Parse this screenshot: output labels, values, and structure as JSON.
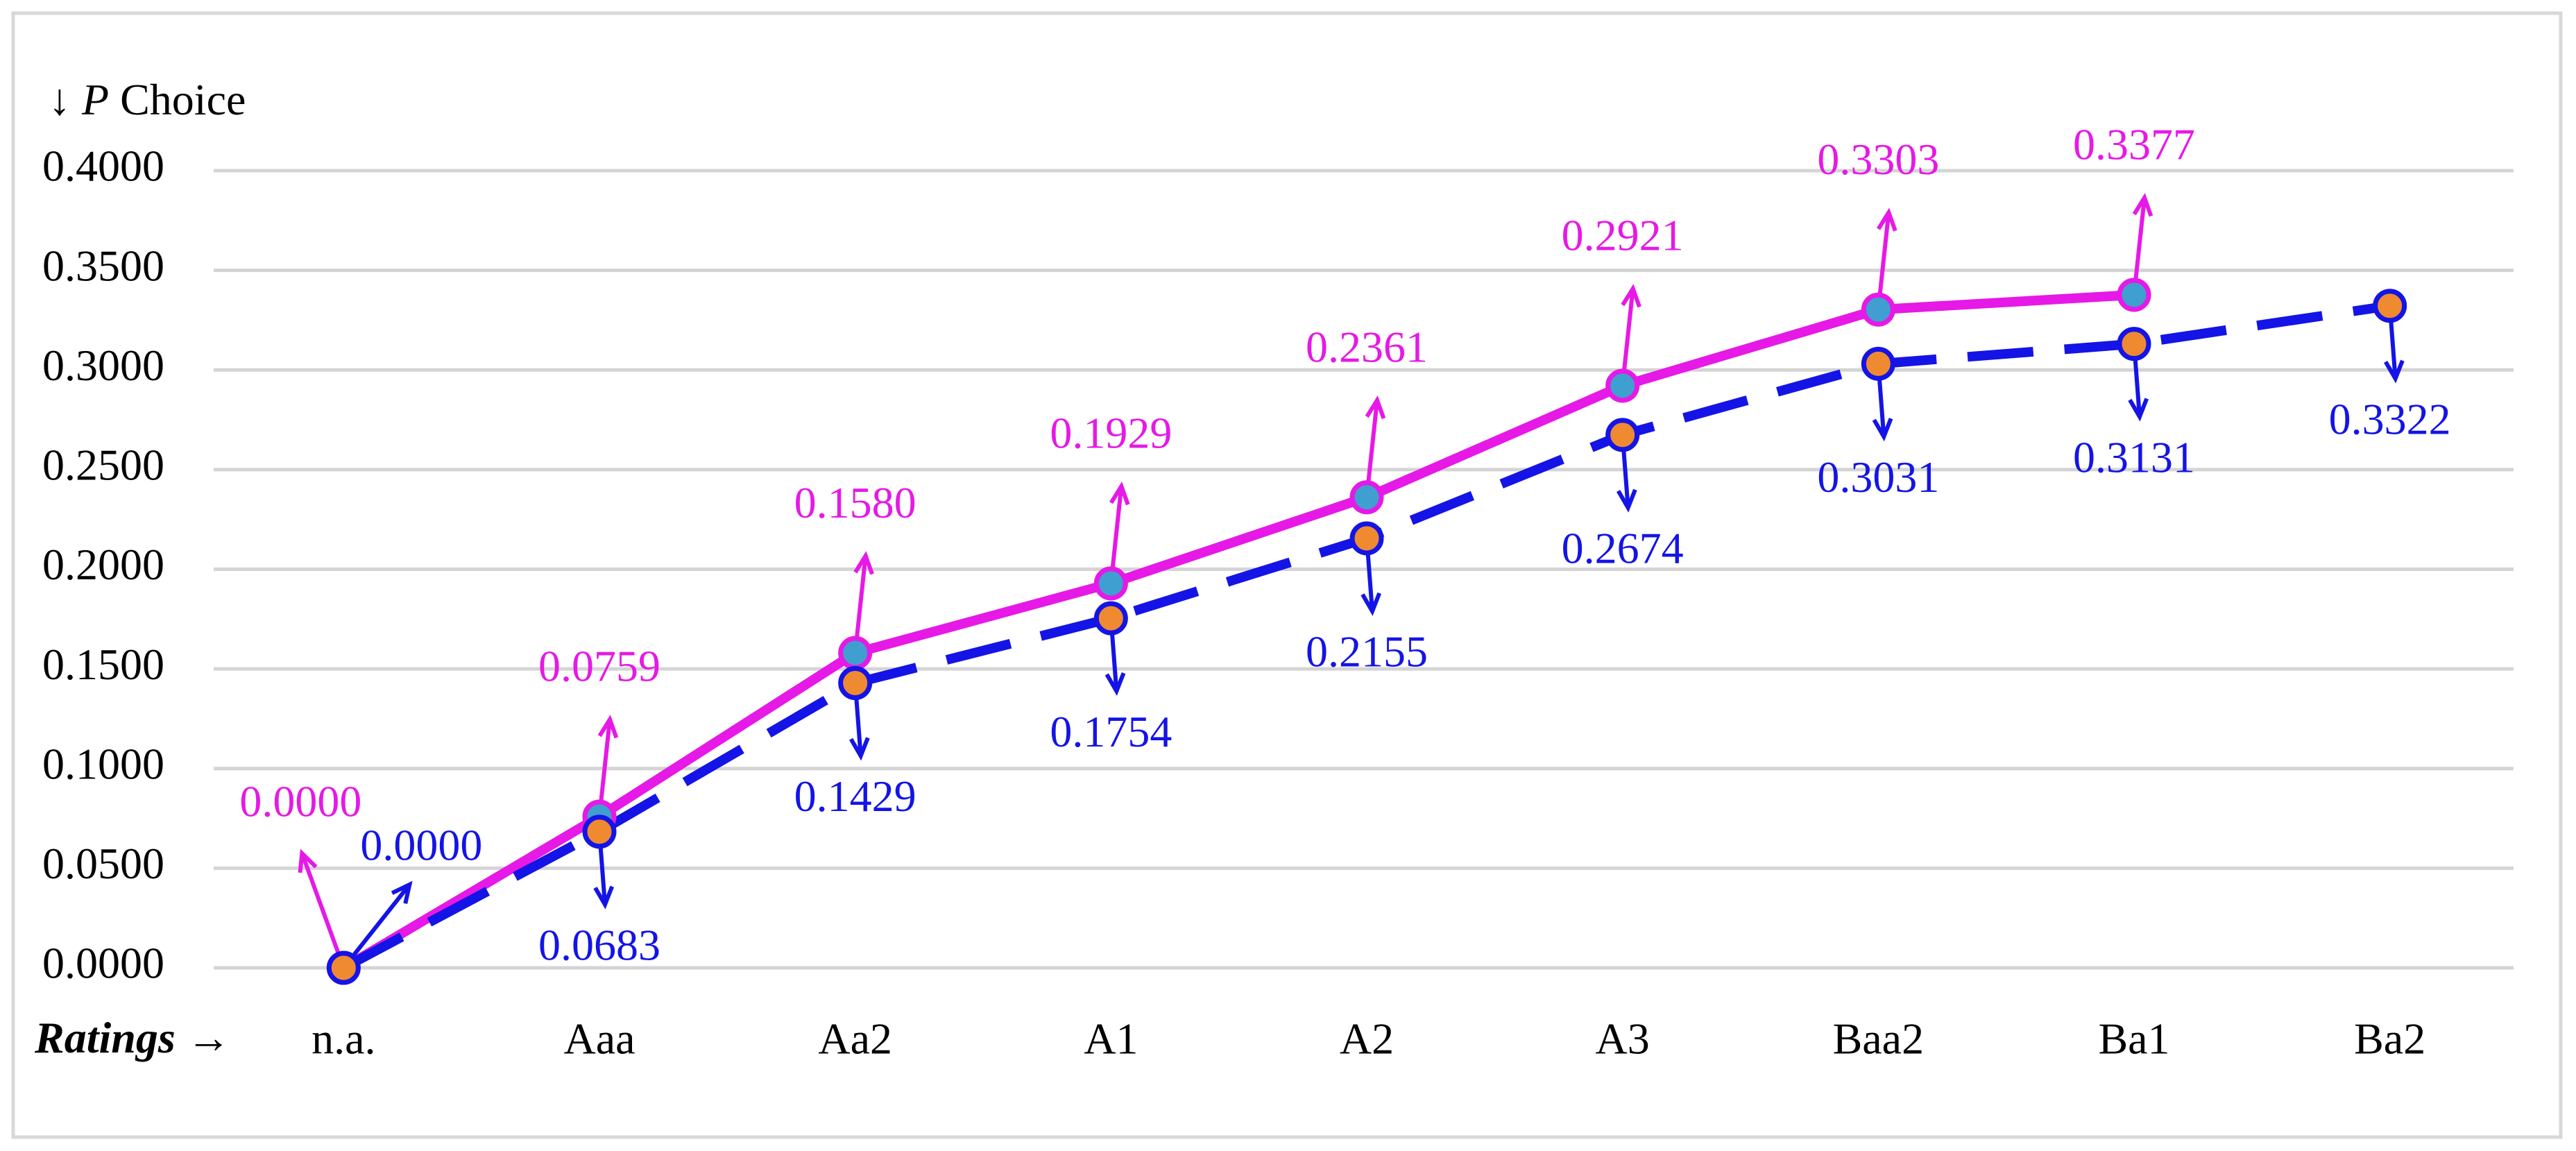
{
  "chart_data": {
    "type": "line",
    "ylabel": [
      "↓",
      "P",
      "Choice"
    ],
    "xlabel": [
      "Ratings",
      "→"
    ],
    "categories": [
      "n.a.",
      "Aaa",
      "Aa2",
      "A1",
      "A2",
      "A3",
      "Baa2",
      "Ba1",
      "Ba2"
    ],
    "series": [
      {
        "color": "#e619e6",
        "marker_fill": "#3f9fd0",
        "dashed": false,
        "values": [
          0.0,
          0.0759,
          0.158,
          0.1929,
          0.2361,
          0.2921,
          0.3303,
          0.3377,
          null
        ],
        "value_labels": [
          "0.0000",
          "0.0759",
          "0.1580",
          "0.1929",
          "0.2361",
          "0.2921",
          "0.3303",
          "0.3377",
          null
        ]
      },
      {
        "color": "#1414e6",
        "marker_fill": "#f08a30",
        "dashed": true,
        "values": [
          0.0,
          0.0683,
          0.1429,
          0.1754,
          0.2155,
          0.2674,
          0.3031,
          0.3131,
          0.3322
        ],
        "value_labels": [
          "0.0000",
          "0.0683",
          "0.1429",
          "0.1754",
          "0.2155",
          "0.2674",
          "0.3031",
          "0.3131",
          "0.3322"
        ]
      }
    ],
    "ylim": [
      0,
      0.4
    ],
    "yticks": [
      {
        "value": 0,
        "label": "0.0000"
      },
      {
        "value": 0.05,
        "label": "0.0500"
      },
      {
        "value": 0.1,
        "label": "0.1000"
      },
      {
        "value": 0.15,
        "label": "0.1500"
      },
      {
        "value": 0.2,
        "label": "0.2000"
      },
      {
        "value": 0.25,
        "label": "0.2500"
      },
      {
        "value": 0.3,
        "label": "0.3000"
      },
      {
        "value": 0.35,
        "label": "0.3500"
      },
      {
        "value": 0.4,
        "label": "0.4000"
      }
    ],
    "grid": true
  }
}
